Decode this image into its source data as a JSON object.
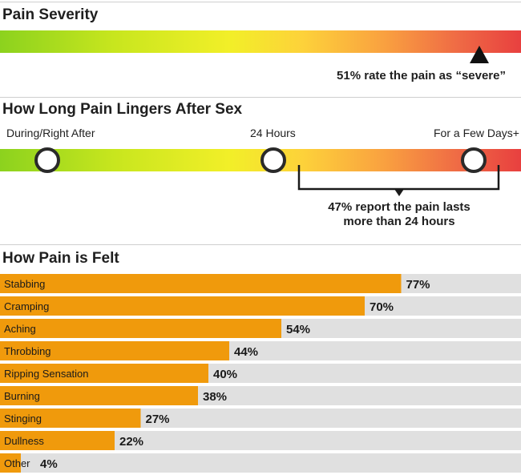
{
  "severity": {
    "title": "Pain Severity",
    "severe_percent": 51,
    "caption": "51% rate the pain as “severe”"
  },
  "duration": {
    "title": "How Long Pain Lingers After Sex",
    "stops": [
      "During/Right After",
      "24 Hours",
      "For a Few Days+"
    ],
    "caption_line1": "47% report the pain lasts",
    "caption_line2": "more than 24 hours",
    "more_than_24h_percent": 47
  },
  "colors": {
    "bar": "#f09a0c",
    "track": "#e0e0e0",
    "gradient": [
      "#8cd21e",
      "#f2ef28",
      "#fdd23a",
      "#f9a040",
      "#e8403f"
    ]
  },
  "chart_data": {
    "type": "bar",
    "title": "How Pain is Felt",
    "orientation": "horizontal",
    "xlim": [
      0,
      100
    ],
    "categories": [
      "Stabbing",
      "Cramping",
      "Aching",
      "Throbbing",
      "Ripping Sensation",
      "Burning",
      "Stinging",
      "Dullness",
      "Other"
    ],
    "values": [
      77,
      70,
      54,
      44,
      40,
      38,
      27,
      22,
      4
    ],
    "value_labels": [
      "77%",
      "70%",
      "54%",
      "44%",
      "40%",
      "38%",
      "27%",
      "22%",
      "4%"
    ]
  }
}
